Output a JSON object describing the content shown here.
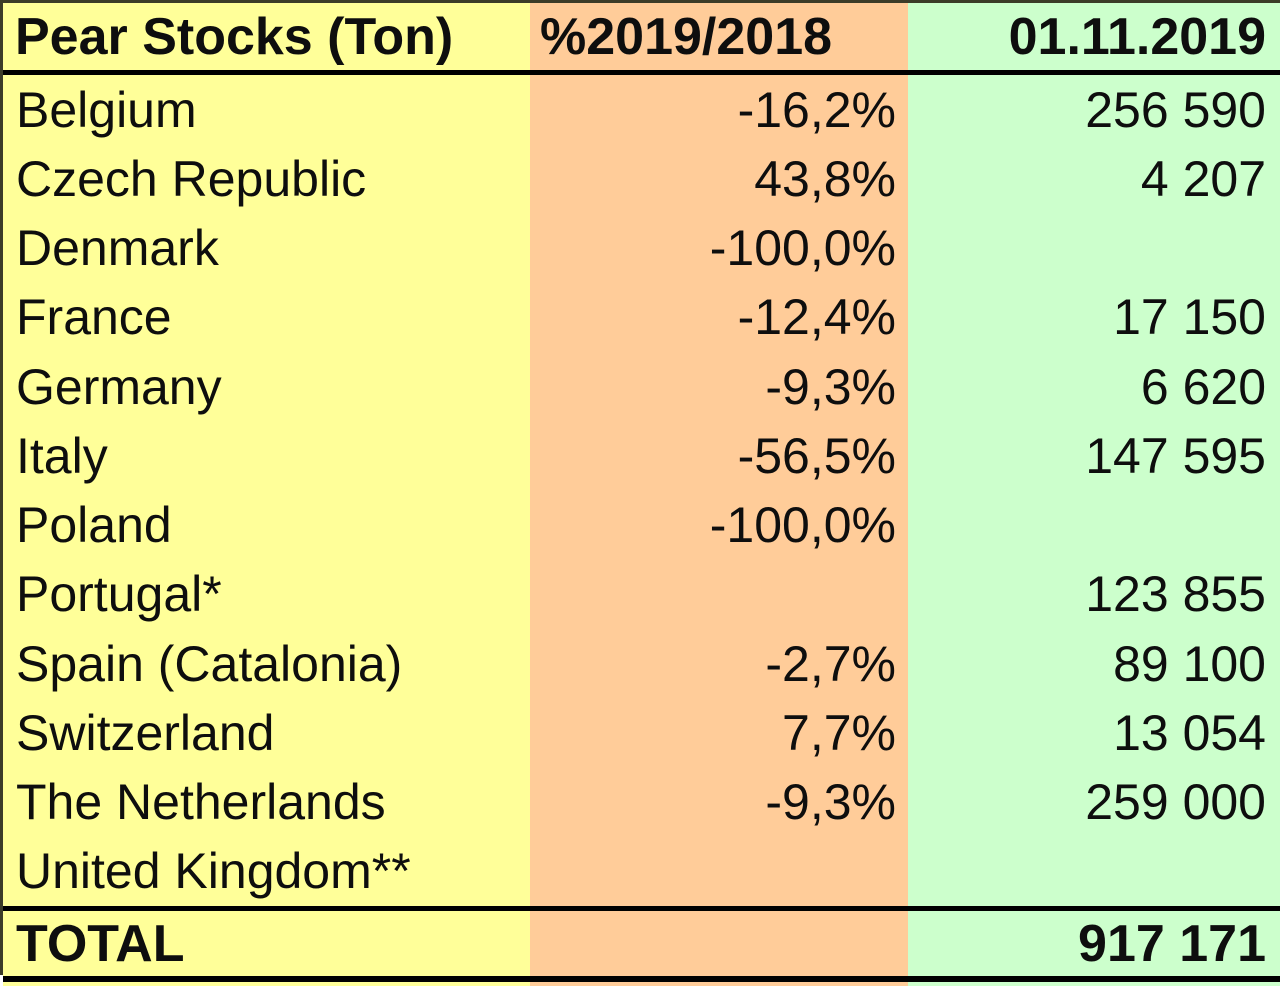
{
  "chart_data": {
    "type": "table",
    "title": "Pear Stocks (Ton)",
    "columns": [
      "Pear Stocks (Ton)",
      "%2019/2018",
      "01.11.2019"
    ],
    "rows": [
      [
        "Belgium",
        "-16,2%",
        "256 590"
      ],
      [
        "Czech Republic",
        "43,8%",
        "4 207"
      ],
      [
        "Denmark",
        "-100,0%",
        ""
      ],
      [
        "France",
        "-12,4%",
        "17 150"
      ],
      [
        "Germany",
        "-9,3%",
        "6 620"
      ],
      [
        "Italy",
        "-56,5%",
        "147 595"
      ],
      [
        "Poland",
        "-100,0%",
        ""
      ],
      [
        "Portugal*",
        "",
        "123 855"
      ],
      [
        "Spain (Catalonia)",
        "-2,7%",
        "89 100"
      ],
      [
        "Switzerland",
        "7,7%",
        "13 054"
      ],
      [
        "The Netherlands",
        "-9,3%",
        "259 000"
      ],
      [
        "United Kingdom**",
        "",
        ""
      ]
    ],
    "total_row": [
      "TOTAL",
      "",
      "917 171"
    ],
    "colors": {
      "country_column_bg": "#FFFF99",
      "percent_column_bg": "#FFCC99",
      "value_column_bg": "#CCFFCC",
      "rule_line": "#000000",
      "text": "#0e0e0e"
    }
  }
}
